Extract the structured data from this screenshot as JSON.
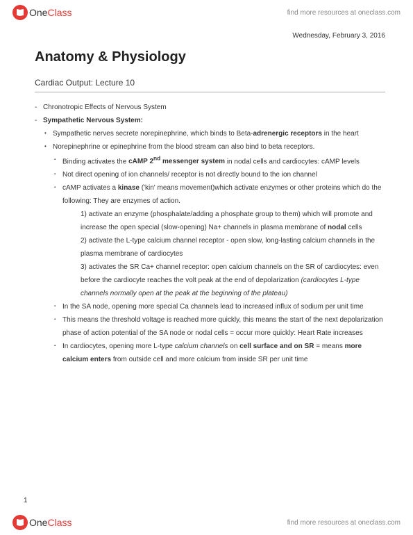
{
  "brand": {
    "name_part1": "One",
    "name_part2": "Class",
    "tagline": "find more resources at oneclass.com",
    "logo_bg": "#e53935"
  },
  "date": "Wednesday, February 3, 2016",
  "title": "Anatomy & Physiology",
  "subtitle": "Cardiac Output: Lecture 10",
  "page_number": "1",
  "lines": [
    {
      "lvl": 0,
      "bullet": "dash",
      "html": "Chronotropic Effects of Nervous System"
    },
    {
      "lvl": 0,
      "bullet": "dash",
      "html": "<b>Sympathetic Nervous System:</b>"
    },
    {
      "lvl": 1,
      "bullet": "dot",
      "html": "Sympathetic nerves secrete norepinephrine, which binds to Beta-<b>adrenergic receptors</b> in the heart"
    },
    {
      "lvl": 1,
      "bullet": "dot",
      "html": "Norepinephrine or epinephrine from the blood stream can also bind to beta receptors."
    },
    {
      "lvl": 2,
      "bullet": "sq",
      "html": "Binding activates the <b>cAMP 2<sup>nd</sup> messenger system</b> in nodal cells and cardiocytes: cAMP levels"
    },
    {
      "lvl": 2,
      "bullet": "sq",
      "html": "Not direct opening of ion channels/ receptor is not directly bound to the ion channel"
    },
    {
      "lvl": 2,
      "bullet": "sq",
      "html": "cAMP activates a <b>kinase</b> ('kin' means movement)which activate enzymes or other proteins which do the following: They are enzymes of action."
    },
    {
      "lvl": 3,
      "bullet": "",
      "html": "1) activate an enzyme (phosphalate/adding a phosphate group to them) which will promote and increase the open special (slow-opening) Na+ channels in plasma membrane of <b>nodal</b> cells"
    },
    {
      "lvl": 3,
      "bullet": "",
      "html": "2) activate the L-type calcium channel receptor - open slow, long-lasting calcium channels in the plasma membrane of cardiocytes"
    },
    {
      "lvl": 3,
      "bullet": "",
      "html": "3) activates the SR Ca+ channel receptor: open calcium channels on the SR of cardiocytes: even before the cardiocyte reaches the volt peak at the end of depolarization <i>(cardiocytes L-type channels normally open at the peak at the beginning of the plateau)</i>"
    },
    {
      "lvl": 2,
      "bullet": "sq",
      "html": "In the SA node, opening more special Ca channels lead to increased influx of sodium per unit time"
    },
    {
      "lvl": 2,
      "bullet": "sq",
      "html": "This means the threshold voltage is reached more quickly, this means the start of the next depolarization phase of action potential of the SA node or nodal cells = occur more quickly: Heart Rate increases"
    },
    {
      "lvl": 2,
      "bullet": "sq",
      "html": "In cardiocytes, opening more L-type <i>calcium channels</i> on <b>cell surface and on SR</b> = means <b>more calcium enters</b> from outside cell and more calcium from inside SR per unit time"
    }
  ]
}
